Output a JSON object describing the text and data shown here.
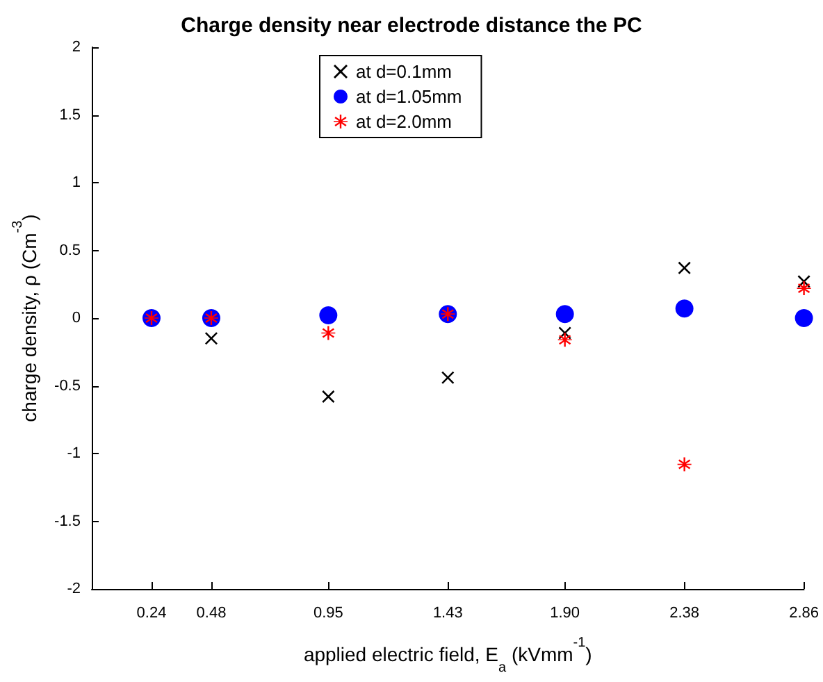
{
  "chart_data": {
    "type": "scatter",
    "title": "Charge density near electrode distance the PC",
    "xlabel": "applied electric field, E$_{a}$ (kVmm$^{-1}$)",
    "ylabel": "charge density, ρ (Cm$^{-3}$)",
    "x": [
      0.24,
      0.48,
      0.95,
      1.43,
      1.9,
      2.38,
      2.86
    ],
    "series": [
      {
        "name": "at d=0.1mm",
        "color": "#000000",
        "marker": "cross",
        "values": [
          null,
          -0.15,
          -0.58,
          -0.44,
          -0.11,
          0.37,
          0.27
        ]
      },
      {
        "name": "at d=1.05mm",
        "color": "#0000ff",
        "marker": "circle",
        "values": [
          0,
          0,
          0.02,
          0.03,
          0.03,
          0.07,
          0
        ]
      },
      {
        "name": "at d=2.0mm",
        "color": "#ff0000",
        "marker": "star",
        "values": [
          0,
          0,
          -0.11,
          0.03,
          -0.16,
          -1.08,
          0.22
        ]
      }
    ],
    "xlim": [
      0,
      2.86
    ],
    "xticks": [
      0.24,
      0.48,
      0.95,
      1.43,
      {
        "value": 1.9,
        "label": "1.90"
      },
      2.38,
      2.86
    ],
    "ylim": [
      -2,
      2
    ],
    "yticks": [
      -2,
      -1.5,
      -1,
      -0.5,
      0,
      0.5,
      1,
      1.5,
      2
    ],
    "grid": false,
    "legend": "top"
  }
}
